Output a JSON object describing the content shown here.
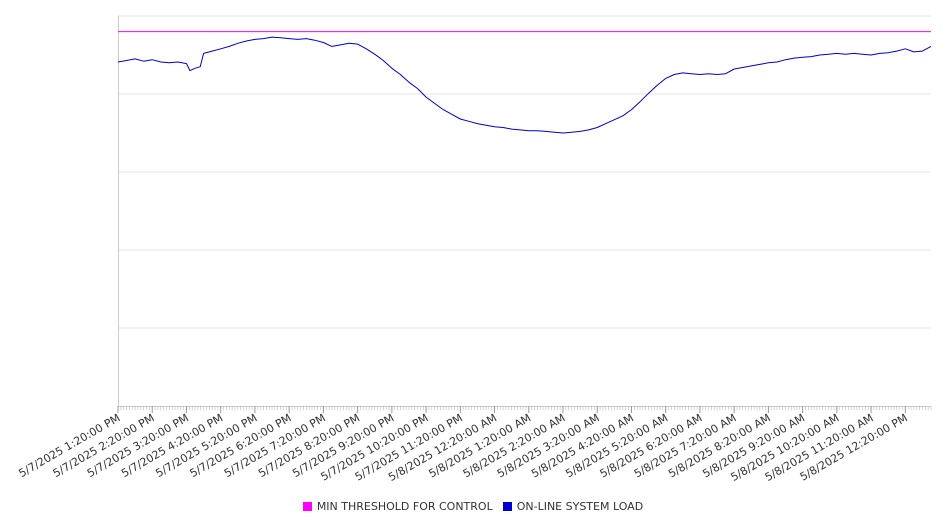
{
  "chart_data": {
    "type": "line",
    "title": "",
    "xlabel": "",
    "ylabel": "",
    "grid": true,
    "legend_position": "bottom",
    "x_tick_labels": [
      "5/7/2025 1:20:00 PM",
      "5/7/2025 2:20:00 PM",
      "5/7/2025 3:20:00 PM",
      "5/7/2025 4:20:00 PM",
      "5/7/2025 5:20:00 PM",
      "5/7/2025 6:20:00 PM",
      "5/7/2025 7:20:00 PM",
      "5/7/2025 8:20:00 PM",
      "5/7/2025 9:20:00 PM",
      "5/7/2025 10:20:00 PM",
      "5/7/2025 11:20:00 PM",
      "5/8/2025 12:20:00 AM",
      "5/8/2025 1:20:00 AM",
      "5/8/2025 2:20:00 AM",
      "5/8/2025 3:20:00 AM",
      "5/8/2025 4:20:00 AM",
      "5/8/2025 5:20:00 AM",
      "5/8/2025 6:20:00 AM",
      "5/8/2025 7:20:00 AM",
      "5/8/2025 8:20:00 AM",
      "5/8/2025 9:20:00 AM",
      "5/8/2025 10:20:00 AM",
      "5/8/2025 11:20:00 AM",
      "5/8/2025 12:20:00 PM"
    ],
    "x_range_hours": [
      0,
      23.75
    ],
    "y_range": [
      0,
      5
    ],
    "y_gridlines": [
      1,
      2,
      3,
      4
    ],
    "series": [
      {
        "name": "MIN THRESHOLD FOR CONTROL",
        "color": "#ff00ff",
        "x_hours": [
          0,
          23.75
        ],
        "values": [
          4.8,
          4.8
        ]
      },
      {
        "name": "ON-LINE SYSTEM LOAD",
        "color": "#0000cc",
        "x_hours": [
          0,
          0.25,
          0.5,
          0.75,
          1.0,
          1.25,
          1.5,
          1.75,
          2.0,
          2.1,
          2.25,
          2.4,
          2.5,
          2.75,
          3.0,
          3.25,
          3.5,
          3.75,
          4.0,
          4.25,
          4.5,
          4.75,
          5.0,
          5.25,
          5.5,
          5.75,
          6.0,
          6.25,
          6.5,
          6.75,
          7.0,
          7.25,
          7.5,
          7.75,
          8.0,
          8.25,
          8.5,
          8.75,
          9.0,
          9.25,
          9.5,
          9.75,
          10.0,
          10.25,
          10.5,
          10.75,
          11.0,
          11.25,
          11.5,
          11.75,
          12.0,
          12.25,
          12.5,
          12.75,
          13.0,
          13.25,
          13.5,
          13.75,
          14.0,
          14.25,
          14.5,
          14.75,
          15.0,
          15.25,
          15.5,
          15.75,
          16.0,
          16.25,
          16.5,
          16.75,
          17.0,
          17.25,
          17.5,
          17.75,
          18.0,
          18.25,
          18.5,
          18.75,
          19.0,
          19.25,
          19.5,
          19.75,
          20.0,
          20.25,
          20.5,
          20.75,
          21.0,
          21.25,
          21.5,
          21.75,
          22.0,
          22.25,
          22.5,
          22.75,
          23.0,
          23.25,
          23.5,
          23.75
        ],
        "values": [
          4.41,
          4.43,
          4.45,
          4.42,
          4.44,
          4.41,
          4.4,
          4.41,
          4.39,
          4.3,
          4.33,
          4.35,
          4.52,
          4.55,
          4.58,
          4.61,
          4.65,
          4.68,
          4.7,
          4.71,
          4.73,
          4.72,
          4.71,
          4.7,
          4.71,
          4.69,
          4.66,
          4.61,
          4.63,
          4.65,
          4.64,
          4.58,
          4.51,
          4.43,
          4.33,
          4.25,
          4.15,
          4.07,
          3.96,
          3.88,
          3.8,
          3.74,
          3.68,
          3.65,
          3.62,
          3.6,
          3.58,
          3.57,
          3.55,
          3.54,
          3.53,
          3.53,
          3.52,
          3.51,
          3.5,
          3.51,
          3.52,
          3.54,
          3.57,
          3.62,
          3.67,
          3.72,
          3.8,
          3.9,
          4.01,
          4.11,
          4.2,
          4.25,
          4.27,
          4.26,
          4.25,
          4.26,
          4.25,
          4.26,
          4.32,
          4.34,
          4.36,
          4.38,
          4.4,
          4.41,
          4.44,
          4.46,
          4.47,
          4.48,
          4.5,
          4.51,
          4.52,
          4.51,
          4.52,
          4.51,
          4.5,
          4.52,
          4.53,
          4.55,
          4.58,
          4.54,
          4.55,
          4.61
        ]
      }
    ]
  }
}
